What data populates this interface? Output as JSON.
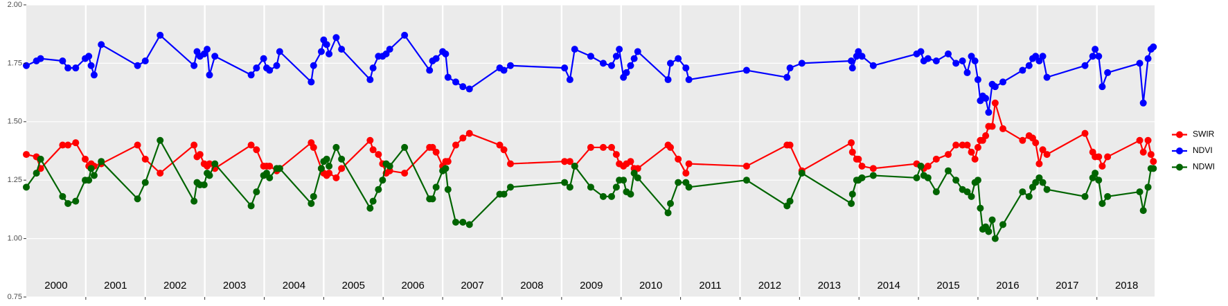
{
  "chart_data": {
    "type": "line",
    "xlim": [
      2000.0,
      2018.97
    ],
    "ylim": [
      0.75,
      2.0
    ],
    "yticks": [
      0.75,
      {
        "value": 1.0,
        "label": "1.00"
      },
      1.25,
      {
        "value": 1.5,
        "label": "1.50"
      },
      1.75,
      {
        "value": 2.0,
        "label": "2.00"
      }
    ],
    "vlines": [
      2001,
      2002,
      2003,
      2004,
      2005,
      2006,
      2007,
      2008,
      2009,
      2010,
      2011,
      2012,
      2013,
      2014,
      2015,
      2016,
      2017,
      2018
    ],
    "year_labels": [
      {
        "value": 2000.5,
        "label": "2000"
      },
      {
        "value": 2001.5,
        "label": "2001"
      },
      {
        "value": 2002.5,
        "label": "2002"
      },
      {
        "value": 2003.5,
        "label": "2003"
      },
      {
        "value": 2004.5,
        "label": "2004"
      },
      {
        "value": 2005.5,
        "label": "2005"
      },
      {
        "value": 2006.5,
        "label": "2006"
      },
      {
        "value": 2007.5,
        "label": "2007"
      },
      {
        "value": 2008.5,
        "label": "2008"
      },
      {
        "value": 2009.5,
        "label": "2009"
      },
      {
        "value": 2010.5,
        "label": "2010"
      },
      {
        "value": 2011.5,
        "label": "2011"
      },
      {
        "value": 2012.5,
        "label": "2012"
      },
      {
        "value": 2013.5,
        "label": "2013"
      },
      {
        "value": 2014.5,
        "label": "2014"
      },
      {
        "value": 2015.5,
        "label": "2015"
      },
      {
        "value": 2016.5,
        "label": "2016"
      },
      {
        "value": 2017.5,
        "label": "2017"
      },
      {
        "value": 2018.5,
        "label": "2018"
      }
    ],
    "grid": true,
    "legend": "right",
    "x": [
      2000.0,
      2000.17,
      2000.24,
      2000.61,
      2000.7,
      2000.83,
      2000.99,
      2001.05,
      2001.09,
      2001.14,
      2001.26,
      2001.87,
      2002.0,
      2002.25,
      2002.82,
      2002.87,
      2002.92,
      2002.99,
      2003.04,
      2003.08,
      2003.17,
      2003.78,
      2003.87,
      2003.99,
      2004.04,
      2004.09,
      2004.21,
      2004.26,
      2004.79,
      2004.83,
      2004.96,
      2005.0,
      2005.05,
      2005.09,
      2005.21,
      2005.3,
      2005.78,
      2005.83,
      2005.92,
      2005.99,
      2006.05,
      2006.11,
      2006.36,
      2006.78,
      2006.83,
      2006.89,
      2007.0,
      2007.05,
      2007.09,
      2007.22,
      2007.34,
      2007.45,
      2007.96,
      2008.03,
      2008.14,
      2009.05,
      2009.14,
      2009.22,
      2009.49,
      2009.7,
      2009.84,
      2009.92,
      2009.97,
      2010.04,
      2010.09,
      2010.16,
      2010.22,
      2010.28,
      2010.79,
      2010.83,
      2010.96,
      2011.09,
      2011.14,
      2012.11,
      2012.79,
      2012.84,
      2013.04,
      2013.87,
      2013.89,
      2013.96,
      2013.99,
      2014.05,
      2014.24,
      2014.97,
      2015.04,
      2015.09,
      2015.16,
      2015.3,
      2015.5,
      2015.63,
      2015.74,
      2015.82,
      2015.89,
      2015.95,
      2016.0,
      2016.04,
      2016.08,
      2016.13,
      2016.18,
      2016.24,
      2016.29,
      2016.42,
      2016.75,
      2016.86,
      2016.92,
      2016.97,
      2017.03,
      2017.09,
      2017.16,
      2017.8,
      2017.93,
      2017.97,
      2018.03,
      2018.09,
      2018.18,
      2018.72,
      2018.78,
      2018.86,
      2018.91,
      2018.95
    ],
    "series": [
      {
        "name": "SWIR",
        "color": "#ff0000",
        "values": [
          1.36,
          1.35,
          1.3,
          1.4,
          1.4,
          1.41,
          1.34,
          1.31,
          1.32,
          1.31,
          1.32,
          1.4,
          1.34,
          1.28,
          1.4,
          1.35,
          1.36,
          1.32,
          1.31,
          1.32,
          1.3,
          1.4,
          1.38,
          1.31,
          1.31,
          1.31,
          1.29,
          1.3,
          1.41,
          1.39,
          1.3,
          1.28,
          1.27,
          1.28,
          1.26,
          1.3,
          1.42,
          1.38,
          1.36,
          1.32,
          1.28,
          1.29,
          1.28,
          1.39,
          1.39,
          1.37,
          1.31,
          1.33,
          1.33,
          1.4,
          1.43,
          1.45,
          1.4,
          1.38,
          1.32,
          1.33,
          1.33,
          1.31,
          1.39,
          1.39,
          1.39,
          1.36,
          1.32,
          1.31,
          1.32,
          1.33,
          1.3,
          1.3,
          1.4,
          1.39,
          1.34,
          1.28,
          1.32,
          1.31,
          1.4,
          1.4,
          1.29,
          1.41,
          1.37,
          1.34,
          1.34,
          1.31,
          1.3,
          1.32,
          1.31,
          1.3,
          1.31,
          1.34,
          1.36,
          1.4,
          1.4,
          1.4,
          1.37,
          1.34,
          1.39,
          1.42,
          1.42,
          1.44,
          1.48,
          1.48,
          1.58,
          1.47,
          1.42,
          1.44,
          1.43,
          1.41,
          1.32,
          1.38,
          1.36,
          1.45,
          1.37,
          1.35,
          1.35,
          1.31,
          1.35,
          1.42,
          1.37,
          1.42,
          1.36,
          1.33
        ]
      },
      {
        "name": "NDVI",
        "color": "#0000ff",
        "values": [
          1.74,
          1.76,
          1.77,
          1.76,
          1.73,
          1.73,
          1.77,
          1.78,
          1.74,
          1.7,
          1.83,
          1.74,
          1.76,
          1.87,
          1.74,
          1.8,
          1.78,
          1.79,
          1.81,
          1.7,
          1.78,
          1.7,
          1.73,
          1.77,
          1.73,
          1.72,
          1.74,
          1.8,
          1.67,
          1.74,
          1.8,
          1.85,
          1.83,
          1.79,
          1.86,
          1.81,
          1.68,
          1.73,
          1.78,
          1.78,
          1.79,
          1.81,
          1.87,
          1.72,
          1.76,
          1.77,
          1.8,
          1.79,
          1.69,
          1.67,
          1.65,
          1.64,
          1.73,
          1.72,
          1.74,
          1.73,
          1.68,
          1.81,
          1.78,
          1.75,
          1.74,
          1.78,
          1.81,
          1.69,
          1.71,
          1.74,
          1.77,
          1.8,
          1.68,
          1.75,
          1.77,
          1.73,
          1.68,
          1.72,
          1.69,
          1.73,
          1.75,
          1.76,
          1.73,
          1.78,
          1.8,
          1.78,
          1.74,
          1.79,
          1.8,
          1.76,
          1.77,
          1.76,
          1.79,
          1.75,
          1.76,
          1.71,
          1.78,
          1.76,
          1.68,
          1.59,
          1.61,
          1.6,
          1.54,
          1.66,
          1.65,
          1.67,
          1.72,
          1.74,
          1.77,
          1.78,
          1.76,
          1.78,
          1.69,
          1.74,
          1.78,
          1.81,
          1.78,
          1.65,
          1.71,
          1.75,
          1.58,
          1.77,
          1.81,
          1.82
        ]
      },
      {
        "name": "NDWI",
        "color": "#006400",
        "values": [
          1.22,
          1.28,
          1.34,
          1.18,
          1.15,
          1.16,
          1.25,
          1.25,
          1.3,
          1.27,
          1.33,
          1.17,
          1.24,
          1.42,
          1.16,
          1.24,
          1.23,
          1.23,
          1.28,
          1.27,
          1.32,
          1.14,
          1.2,
          1.27,
          1.28,
          1.26,
          1.3,
          1.3,
          1.15,
          1.18,
          1.3,
          1.33,
          1.34,
          1.31,
          1.39,
          1.34,
          1.13,
          1.16,
          1.21,
          1.25,
          1.32,
          1.31,
          1.39,
          1.17,
          1.17,
          1.22,
          1.29,
          1.3,
          1.21,
          1.07,
          1.07,
          1.06,
          1.19,
          1.19,
          1.22,
          1.24,
          1.22,
          1.31,
          1.22,
          1.18,
          1.18,
          1.22,
          1.25,
          1.25,
          1.2,
          1.19,
          1.28,
          1.26,
          1.11,
          1.15,
          1.24,
          1.24,
          1.22,
          1.25,
          1.14,
          1.16,
          1.28,
          1.15,
          1.19,
          1.25,
          1.25,
          1.26,
          1.27,
          1.26,
          1.31,
          1.27,
          1.26,
          1.2,
          1.29,
          1.25,
          1.21,
          1.2,
          1.18,
          1.24,
          1.25,
          1.13,
          1.04,
          1.05,
          1.03,
          1.08,
          1.0,
          1.06,
          1.2,
          1.18,
          1.22,
          1.24,
          1.26,
          1.24,
          1.21,
          1.18,
          1.26,
          1.28,
          1.25,
          1.15,
          1.18,
          1.2,
          1.12,
          1.22,
          1.3,
          1.3
        ]
      }
    ]
  }
}
